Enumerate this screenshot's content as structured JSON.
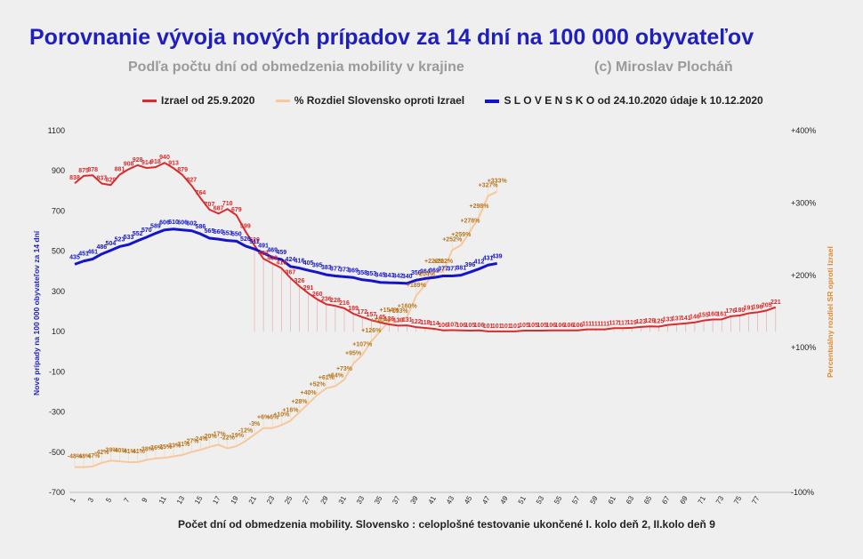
{
  "title": "Porovnanie vývoja nových prípadov za 14 dní na 100 000 obyvateľov",
  "subtitle": "Podľa počtu dní od obmedzenia mobility v krajine",
  "copyright": "(c) Miroslav Plocháň",
  "colors": {
    "israel": "#d92b2b",
    "diff": "#f7c89b",
    "diff_label": "#b9771f",
    "slovakia": "#1414c8",
    "title": "#1f1fbf"
  },
  "chart_data": {
    "type": "line",
    "xlabel": "Počet dní od obmedzenia mobility.  Slovensko :  celoplošné testovanie ukončené  I. kolo deň 2,  II.kolo deň 9",
    "ylabel": "Nové prípady na 100 000 obyvateľov za 14 dní",
    "y2label": "Percentuálny rozdiel  SR oproti Izrael",
    "ylim": [
      -700,
      1100
    ],
    "y_ticks": [
      "1100",
      "900",
      "700",
      "500",
      "300",
      "100",
      "-100",
      "-300",
      "-500",
      "-700"
    ],
    "y2lim": [
      -100,
      400
    ],
    "y2_ticks": [
      "+400%",
      "+300%",
      "+200%",
      "+100%",
      "-100%"
    ],
    "x_ticks": [
      "1",
      "3",
      "5",
      "7",
      "9",
      "11",
      "13",
      "15",
      "17",
      "19",
      "21",
      "23",
      "25",
      "27",
      "29",
      "31",
      "33",
      "35",
      "37",
      "39",
      "41",
      "43",
      "45",
      "47",
      "49",
      "51",
      "53",
      "55",
      "57",
      "59",
      "61",
      "63",
      "65",
      "67",
      "69",
      "71",
      "73",
      "75",
      "77"
    ],
    "legend_position": "top",
    "grid": false,
    "series": [
      {
        "name": "Izrael od 25.9.2020",
        "values": [
          838,
          875,
          878,
          837,
          829,
          881,
          908,
          928,
          914,
          918,
          940,
          913,
          879,
          827,
          764,
          707,
          687,
          710,
          679,
          599,
          529,
          463,
          439,
          416,
          367,
          326,
          291,
          260,
          236,
          228,
          216,
          189,
          172,
          157,
          145,
          136,
          130,
          131,
          122,
          118,
          114,
          106,
          107,
          106,
          105,
          106,
          101,
          101,
          101,
          101,
          105,
          105,
          105,
          106,
          106,
          106,
          106,
          111,
          111,
          111,
          117,
          117,
          119,
          123,
          126,
          125,
          133,
          137,
          141,
          146,
          155,
          160,
          161,
          176,
          180,
          191,
          196,
          205,
          221
        ],
        "labels": [
          "838",
          "875",
          "878",
          "837",
          "829",
          "881",
          "908",
          "928",
          "914",
          "918",
          "940",
          "913",
          "879",
          "827",
          "764",
          "707",
          "687",
          "710",
          "679",
          "599",
          "529",
          "463",
          "439",
          "416",
          "367",
          "326",
          "291",
          "260",
          "236",
          "228",
          "216",
          "189",
          "172",
          "157",
          "145",
          "136",
          "130",
          "131",
          "122",
          "118",
          "114",
          "106",
          "107",
          "106",
          "105",
          "106",
          "101",
          "101",
          "101",
          "101",
          "105",
          "105",
          "105",
          "106",
          "106",
          "106",
          "106",
          "111",
          "111",
          "111",
          "117",
          "117",
          "119",
          "123",
          "126",
          "125",
          "133",
          "137",
          "141",
          "146",
          "155",
          "160",
          "161",
          "176",
          "180",
          "191",
          "196",
          "205",
          "221"
        ]
      },
      {
        "name": "% Rozdiel Slovensko oproti Izrael",
        "axis": "secondary",
        "values": [
          -48,
          -48,
          -47,
          -42,
          -39,
          -40,
          -41,
          -41,
          -38,
          -36,
          -35,
          -33,
          -31,
          -27,
          -24,
          -20,
          -17,
          -22,
          -19,
          -12,
          -3,
          6,
          6,
          10,
          16,
          28,
          40,
          52,
          61,
          64,
          73,
          95,
          107,
          126,
          140,
          154,
          153,
          160,
          189,
          204,
          222,
          222,
          252,
          259,
          278,
          298,
          327,
          333
        ],
        "labels": [
          "-48%",
          "-48%",
          "-47%",
          "-42%",
          "-39%",
          "-40%",
          "-41%",
          "-41%",
          "-38%",
          "-36%",
          "-35%",
          "-33%",
          "-31%",
          "-27%",
          "-24%",
          "-20%",
          "-17%",
          "-22%",
          "-19%",
          "-12%",
          "-3%",
          "+6%",
          "+6%",
          "+10%",
          "+16%",
          "+28%",
          "+40%",
          "+52%",
          "+61%",
          "+64%",
          "+73%",
          "+95%",
          "+107%",
          "+126%",
          "+140%",
          "+154%",
          "+153%",
          "+160%",
          "+189%",
          "+204%",
          "+222%",
          "+222%",
          "+252%",
          "+259%",
          "+278%",
          "+298%",
          "+327%",
          "+333%"
        ]
      },
      {
        "name": "S L O V E N S K O od 24.10.2020 údaje k 10.12.2020",
        "values": [
          435,
          451,
          461,
          486,
          504,
          523,
          533,
          552,
          570,
          589,
          606,
          610,
          606,
          602,
          586,
          565,
          560,
          553,
          550,
          526,
          511,
          491,
          469,
          459,
          424,
          416,
          405,
          395,
          383,
          377,
          373,
          369,
          358,
          353,
          345,
          343,
          342,
          340,
          356,
          364,
          369,
          377,
          377,
          381,
          396,
          412,
          431,
          439
        ],
        "labels": [
          "435",
          "451",
          "461",
          "486",
          "504",
          "523",
          "533",
          "552",
          "570",
          "589",
          "606",
          "610",
          "606",
          "602",
          "586",
          "565",
          "560",
          "553",
          "550",
          "526",
          "511",
          "491",
          "469",
          "459",
          "424",
          "416",
          "405",
          "395",
          "383",
          "377",
          "373",
          "369",
          "358",
          "353",
          "345",
          "343",
          "342",
          "340",
          "356",
          "364",
          "369",
          "377",
          "377",
          "381",
          "396",
          "412",
          "431",
          "439"
        ]
      }
    ]
  }
}
